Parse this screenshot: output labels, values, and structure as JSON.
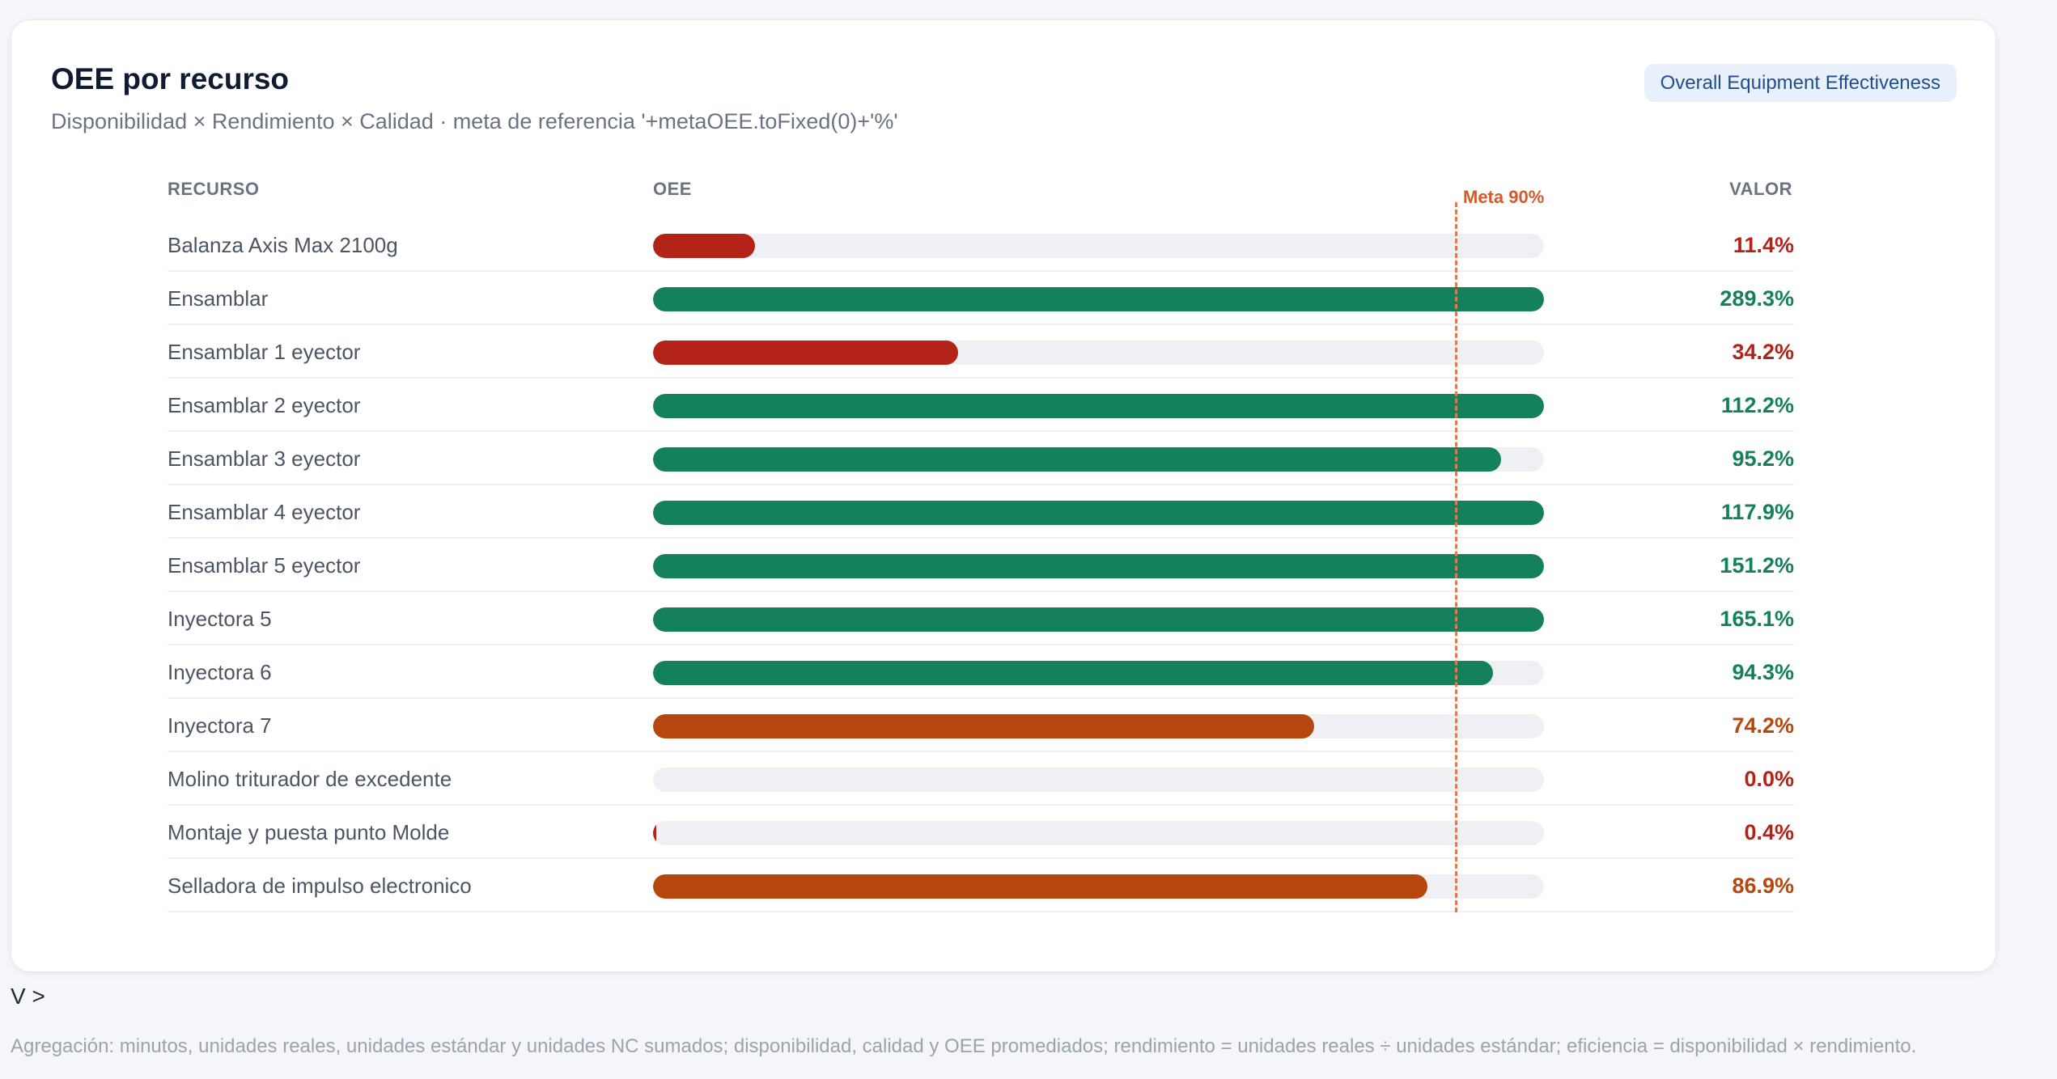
{
  "card": {
    "title": "OEE por recurso",
    "subtitle": "Disponibilidad × Rendimiento × Calidad · meta de referencia '+metaOEE.toFixed(0)+'%'",
    "badge": "Overall Equipment Effectiveness"
  },
  "chart_data": {
    "type": "bar",
    "orientation": "horizontal",
    "columns": {
      "resource": "RECURSO",
      "bar": "OEE",
      "value": "VALOR"
    },
    "meta": {
      "label": "Meta 90%",
      "value": 90
    },
    "xlim": [
      0,
      100
    ],
    "categories": [
      "Balanza Axis Max 2100g",
      "Ensamblar",
      "Ensamblar 1 eyector",
      "Ensamblar 2 eyector",
      "Ensamblar 3 eyector",
      "Ensamblar 4 eyector",
      "Ensamblar 5 eyector",
      "Inyectora 5",
      "Inyectora 6",
      "Inyectora 7",
      "Molino triturador de excedente",
      "Montaje y puesta punto Molde",
      "Selladora de impulso electronico"
    ],
    "values": [
      11.4,
      289.3,
      34.2,
      112.2,
      95.2,
      117.9,
      151.2,
      165.1,
      94.3,
      74.2,
      0.0,
      0.4,
      86.9
    ],
    "value_labels": [
      "11.4%",
      "289.3%",
      "34.2%",
      "112.2%",
      "95.2%",
      "117.9%",
      "151.2%",
      "165.1%",
      "94.3%",
      "74.2%",
      "0.0%",
      "0.4%",
      "86.9%"
    ],
    "colors": {
      "good": "#15805c",
      "warn": "#b5470f",
      "bad": "#b42318",
      "track": "#eef0f4",
      "meta": "#e07a52"
    }
  },
  "controls": {
    "expand": "V >"
  },
  "footnote": "Agregación: minutos, unidades reales, unidades estándar y unidades NC sumados; disponibilidad, calidad y OEE promediados; rendimiento = unidades reales ÷ unidades estándar; eficiencia = disponibilidad × rendimiento."
}
